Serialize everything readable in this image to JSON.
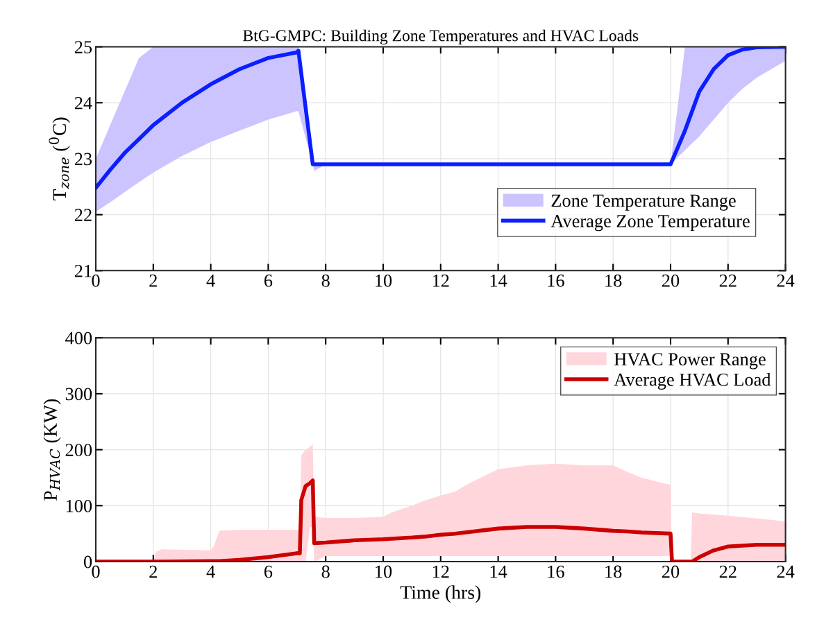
{
  "chart_data": [
    {
      "type": "line",
      "title": "BtG-GMPC: Building Zone Temperatures and HVAC Loads",
      "ylabel": "T$_{zone}$ ($^{0}$C)",
      "xlim": [
        0,
        24
      ],
      "xticks": [
        0,
        2,
        4,
        6,
        8,
        10,
        12,
        14,
        16,
        18,
        20,
        22,
        24
      ],
      "ylim": [
        21,
        25
      ],
      "yticks": [
        21,
        22,
        23,
        24,
        25
      ],
      "grid": true,
      "legend": "right",
      "series": [
        {
          "type": "area",
          "name": "Zone Temperature Range",
          "color": "#ccc4ff"
        },
        {
          "type": "line",
          "name": "Average Zone Temperature",
          "color": "#0a1eff",
          "x": [
            0,
            0.5,
            1,
            1.5,
            2,
            3,
            4,
            5,
            6,
            7,
            7.05,
            7.55,
            7.6,
            8,
            20,
            20.5,
            21,
            21.5,
            22,
            22.5,
            23,
            24
          ],
          "values": [
            22.48,
            22.8,
            23.1,
            23.35,
            23.6,
            24.0,
            24.33,
            24.6,
            24.8,
            24.9,
            24.93,
            22.9,
            22.9,
            22.9,
            22.9,
            23.5,
            24.2,
            24.6,
            24.85,
            24.95,
            24.99,
            25.0
          ],
          "lower": [
            22.05,
            22.22,
            22.4,
            22.58,
            22.75,
            23.05,
            23.3,
            23.5,
            23.7,
            23.85,
            23.85,
            22.9,
            22.78,
            22.9,
            22.9,
            23.15,
            23.4,
            23.7,
            24.0,
            24.25,
            24.45,
            24.75
          ],
          "upper": [
            23.0,
            23.6,
            24.2,
            24.8,
            25.0,
            25.0,
            25.0,
            25.0,
            25.0,
            25.0,
            25.0,
            22.9,
            22.9,
            22.9,
            22.9,
            25.0,
            25.0,
            25.0,
            25.0,
            25.0,
            25.0,
            25.0
          ]
        }
      ]
    },
    {
      "type": "line",
      "xlabel": "Time (hrs)",
      "ylabel": "P$_{HVAC}$ (KW)",
      "xlim": [
        0,
        24
      ],
      "xticks": [
        0,
        2,
        4,
        6,
        8,
        10,
        12,
        14,
        16,
        18,
        20,
        22,
        24
      ],
      "ylim": [
        0,
        400
      ],
      "yticks": [
        0,
        100,
        200,
        300,
        400
      ],
      "grid": true,
      "legend": "top right",
      "series": [
        {
          "type": "area",
          "name": "HVAC Power Range",
          "color": "#ffd6dc"
        },
        {
          "type": "line",
          "name": "Average HVAC Load",
          "color": "#cc0000",
          "x": [
            0,
            2,
            2.1,
            2.3,
            4,
            4.1,
            4.3,
            5,
            6,
            7,
            7.1,
            7.15,
            7.3,
            7.45,
            7.55,
            7.6,
            8,
            9,
            10,
            10.3,
            11,
            11.5,
            12,
            12.5,
            13,
            14,
            15,
            16,
            17,
            18,
            18.5,
            19,
            20,
            20.05,
            20.7,
            20.75,
            21,
            21.5,
            22,
            23,
            24
          ],
          "values": [
            0,
            0,
            0,
            0,
            1,
            1,
            1,
            3,
            8,
            15,
            15,
            110,
            135,
            140,
            145,
            33,
            34,
            38,
            40,
            41,
            43,
            45,
            48,
            50,
            53,
            59,
            62,
            62,
            59,
            55,
            54,
            52,
            50,
            0,
            0,
            0,
            8,
            20,
            27,
            30,
            30
          ],
          "lower": [
            0,
            0,
            0,
            0,
            0,
            0,
            0,
            0,
            0,
            0,
            0,
            0,
            0,
            62,
            62,
            0,
            10,
            10,
            10,
            10,
            10,
            10,
            10,
            10,
            10,
            10,
            10,
            10,
            10,
            10,
            10,
            10,
            10,
            0,
            0,
            0,
            0,
            0,
            0,
            0,
            0
          ],
          "upper": [
            0,
            0,
            18,
            22,
            20,
            27,
            55,
            57,
            57,
            57,
            55,
            190,
            200,
            205,
            210,
            80,
            78,
            78,
            80,
            88,
            100,
            110,
            118,
            125,
            140,
            165,
            172,
            175,
            172,
            172,
            160,
            150,
            137,
            0,
            0,
            88,
            86,
            84,
            82,
            77,
            72
          ]
        }
      ]
    }
  ]
}
